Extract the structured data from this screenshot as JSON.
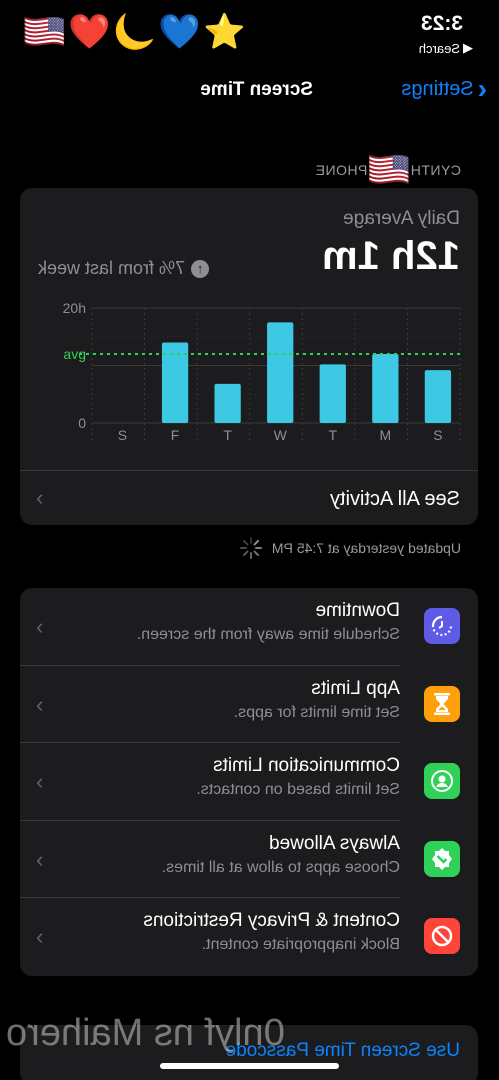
{
  "status_bar": {
    "time": "3:23",
    "back_app": "Search",
    "emojis": [
      "⭐",
      "💙",
      "🌙",
      "❤️",
      "🇺🇸"
    ]
  },
  "nav": {
    "back_label": "Settings",
    "title": "Screen Time"
  },
  "device": {
    "name_left": "CYNTH",
    "flag": "🇺🇸",
    "name_right": "PHONE"
  },
  "summary": {
    "label": "Daily Average",
    "value": "12h 1m",
    "change": "7% from last week",
    "see_all": "See All Activity"
  },
  "chart_data": {
    "type": "bar",
    "categories": [
      "S",
      "M",
      "T",
      "W",
      "T",
      "F",
      "S"
    ],
    "values": [
      9.2,
      12,
      10.2,
      17.5,
      6.8,
      14,
      0
    ],
    "y_ticks": [
      "20h",
      "0"
    ],
    "ylim": [
      0,
      20
    ],
    "avg_label": "avg",
    "avg_value": 12,
    "bar_color": "#3dc8e3",
    "avg_color": "#30d158"
  },
  "updated": "Updated yesterday at 7:45 PM",
  "rows": [
    {
      "icon": "downtime-icon",
      "color": "#5e5ce6",
      "title": "Downtime",
      "subtitle": "Schedule time away from the screen."
    },
    {
      "icon": "hourglass-icon",
      "color": "#ff9f0a",
      "title": "App Limits",
      "subtitle": "Set time limits for apps."
    },
    {
      "icon": "contact-icon",
      "color": "#30d158",
      "title": "Communication Limits",
      "subtitle": "Set limits based on contacts."
    },
    {
      "icon": "checkmark-badge-icon",
      "color": "#30d158",
      "title": "Always Allowed",
      "subtitle": "Choose apps to allow at all times."
    },
    {
      "icon": "restriction-icon",
      "color": "#ff453a",
      "title": "Content & Privacy Restrictions",
      "subtitle": "Block inappropriate content."
    }
  ],
  "passcode_label": "Use Screen Time Passcode",
  "watermark": "0nlyf ns Maihero"
}
